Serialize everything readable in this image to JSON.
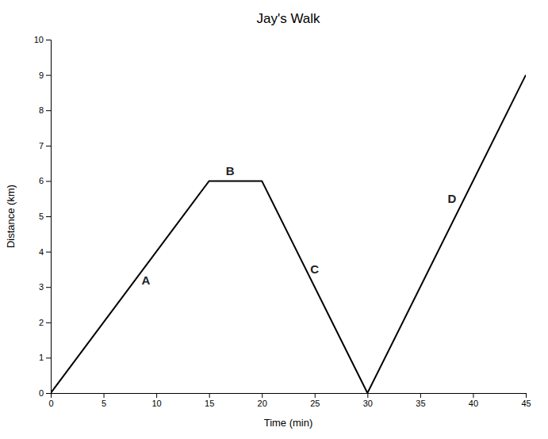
{
  "chart_data": {
    "type": "line",
    "title": "Jay's Walk",
    "xlabel": "Time (min)",
    "ylabel": "Distance (km)",
    "x": [
      0,
      15,
      20,
      30,
      45
    ],
    "values": [
      0,
      6,
      6,
      0,
      9
    ],
    "color": "#000000",
    "xlim": [
      0,
      45
    ],
    "ylim": [
      0,
      10
    ],
    "xticks": [
      0,
      5,
      10,
      15,
      20,
      25,
      30,
      35,
      40,
      45
    ],
    "yticks": [
      0,
      1,
      2,
      3,
      4,
      5,
      6,
      7,
      8,
      9,
      10
    ],
    "grid": false,
    "annotations": [
      {
        "text": "A",
        "x": 9,
        "y": 3.2
      },
      {
        "text": "B",
        "x": 17,
        "y": 6.3
      },
      {
        "text": "C",
        "x": 25,
        "y": 3.5
      },
      {
        "text": "D",
        "x": 38,
        "y": 5.5
      }
    ]
  }
}
